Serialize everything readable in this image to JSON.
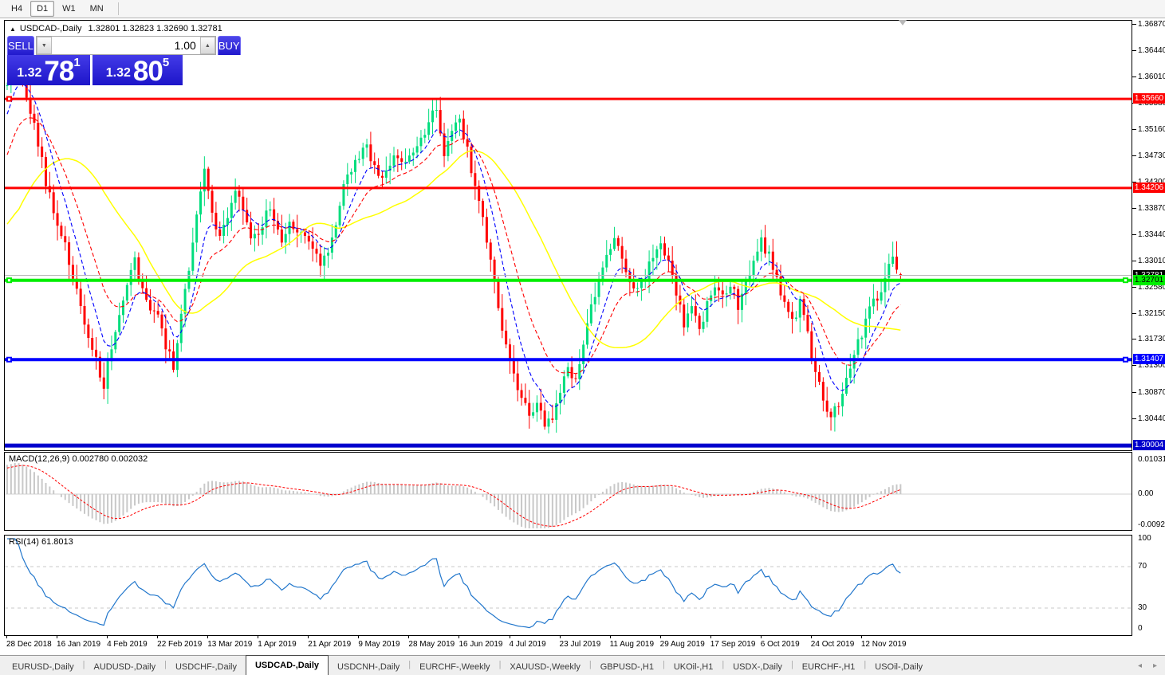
{
  "toolbar": {
    "timeframes": [
      {
        "label": "H4",
        "active": false
      },
      {
        "label": "D1",
        "active": true
      },
      {
        "label": "W1",
        "active": false
      },
      {
        "label": "MN",
        "active": false
      }
    ]
  },
  "chart": {
    "symbol": "USDCAD-,Daily",
    "ohlc_text": "1.32801 1.32823 1.32690 1.32781"
  },
  "trade_panel": {
    "sell_label": "SELL",
    "buy_label": "BUY",
    "volume": "1.00",
    "sell_price_main": "1.32",
    "sell_price_big": "78",
    "sell_price_sup": "1",
    "buy_price_main": "1.32",
    "buy_price_big": "80",
    "buy_price_sup": "5",
    "sell_price_full": "1.32781",
    "buy_price_full": "1.32805"
  },
  "price_axis": {
    "ticks": [
      "1.36870",
      "1.36440",
      "1.36010",
      "1.35580",
      "1.35160",
      "1.34730",
      "1.34300",
      "1.33870",
      "1.33440",
      "1.33010",
      "1.32580",
      "1.32150",
      "1.31730",
      "1.31300",
      "1.30870",
      "1.30440"
    ]
  },
  "hlines": [
    {
      "price": 1.3566,
      "label": "1.35660",
      "color": "#ff0000",
      "width": 3,
      "tag_bg": "#ff0000",
      "tag_fg": "#ffffff",
      "handles": [
        "left"
      ],
      "name": "resistance-line-1.35660"
    },
    {
      "price": 1.34206,
      "label": "1.34206",
      "color": "#ff0000",
      "width": 3,
      "tag_bg": "#ff0000",
      "tag_fg": "#ffffff",
      "handles": [],
      "name": "resistance-line-1.34206"
    },
    {
      "price": 1.32781,
      "label": "1.32781",
      "color": "#b8b8b8",
      "width": 1,
      "tag_bg": "#000000",
      "tag_fg": "#ffffff",
      "handles": [],
      "name": "bid-price-line"
    },
    {
      "price": 1.32701,
      "label": "1.32701",
      "color": "#00ee00",
      "width": 4,
      "tag_bg": "#00ee00",
      "tag_fg": "#000000",
      "handles": [
        "left",
        "right"
      ],
      "name": "support-line-1.32701"
    },
    {
      "price": 1.31407,
      "label": "1.31407",
      "color": "#0000ff",
      "width": 4,
      "tag_bg": "#0000ff",
      "tag_fg": "#ffffff",
      "handles": [
        "left",
        "right"
      ],
      "name": "support-line-1.31407"
    },
    {
      "price": 1.30004,
      "label": "1.30004",
      "color": "#0000cd",
      "width": 5,
      "tag_bg": "#0000cd",
      "tag_fg": "#ffffff",
      "handles": [],
      "name": "support-line-1.30004"
    }
  ],
  "indicators": {
    "macd": {
      "label": "MACD(12,26,9) 0.002780 0.002032",
      "params": [
        12,
        26,
        9
      ],
      "value": 0.00278,
      "signal": 0.002032,
      "axis": [
        {
          "label": "0.010311",
          "value": 0.010311
        },
        {
          "label": "0.00",
          "value": 0
        },
        {
          "label": "-0.009203",
          "value": -0.009203
        }
      ]
    },
    "rsi": {
      "label": "RSI(14) 61.8013",
      "period": 14,
      "value": 61.8013,
      "levels": [
        70,
        30
      ],
      "axis": [
        {
          "label": "100",
          "value": 100
        },
        {
          "label": "70",
          "value": 70
        },
        {
          "label": "30",
          "value": 30
        },
        {
          "label": "0",
          "value": 0
        }
      ]
    }
  },
  "date_axis": [
    "28 Dec 2018",
    "16 Jan 2019",
    "4 Feb 2019",
    "22 Feb 2019",
    "13 Mar 2019",
    "1 Apr 2019",
    "21 Apr 2019",
    "9 May 2019",
    "28 May 2019",
    "16 Jun 2019",
    "4 Jul 2019",
    "23 Jul 2019",
    "11 Aug 2019",
    "29 Aug 2019",
    "17 Sep 2019",
    "6 Oct 2019",
    "24 Oct 2019",
    "12 Nov 2019"
  ],
  "tabs": [
    {
      "label": "EURUSD-,Daily",
      "active": false
    },
    {
      "label": "AUDUSD-,Daily",
      "active": false
    },
    {
      "label": "USDCHF-,Daily",
      "active": false
    },
    {
      "label": "USDCAD-,Daily",
      "active": true
    },
    {
      "label": "USDCNH-,Daily",
      "active": false
    },
    {
      "label": "EURCHF-,Weekly",
      "active": false
    },
    {
      "label": "XAUUSD-,Weekly",
      "active": false
    },
    {
      "label": "GBPUSD-,H1",
      "active": false
    },
    {
      "label": "UKOil-,H1",
      "active": false
    },
    {
      "label": "USDX-,Daily",
      "active": false
    },
    {
      "label": "EURCHF-,H1",
      "active": false
    },
    {
      "label": "USOil-,Daily",
      "active": false
    }
  ],
  "tab_arrows": {
    "left": "◂",
    "right": "▸"
  },
  "colors": {
    "candle_up": "#00dd7d",
    "candle_down": "#ff0000",
    "ma_fast": "#0000ff",
    "ma_mid": "#ff0000",
    "ma_slow": "#ffff00",
    "macd_hist": "#c8c8c8",
    "macd_signal": "#ff0000",
    "rsi_line": "#2277cc",
    "panel_blue": "#2a22d6"
  },
  "chart_data": {
    "type": "candlestick",
    "symbol": "USDCAD-",
    "timeframe": "Daily",
    "candle_count": 232,
    "bars_per_date_label": 13,
    "seed_bars": 30,
    "last_ohlc": {
      "open": 1.32801,
      "high": 1.32823,
      "low": 1.3269,
      "close": 1.32781
    },
    "y_axis_top": 1.3687,
    "y_axis_bottom": 1.3044,
    "sr_levels": [
      1.3566,
      1.34206,
      1.32701,
      1.31407,
      1.30004
    ],
    "price_keypoints": [
      [
        -30,
        1.3165
      ],
      [
        -22,
        1.324
      ],
      [
        -14,
        1.337
      ],
      [
        -7,
        1.349
      ],
      [
        -2,
        1.357
      ],
      [
        0,
        1.359
      ],
      [
        2,
        1.3645
      ],
      [
        4,
        1.36
      ],
      [
        6,
        1.3545
      ],
      [
        8,
        1.3495
      ],
      [
        10,
        1.343
      ],
      [
        12,
        1.338
      ],
      [
        14,
        1.335
      ],
      [
        16,
        1.33
      ],
      [
        18,
        1.3255
      ],
      [
        20,
        1.3205
      ],
      [
        22,
        1.3165
      ],
      [
        24,
        1.311
      ],
      [
        25,
        1.3085
      ],
      [
        26,
        1.313
      ],
      [
        28,
        1.318
      ],
      [
        30,
        1.324
      ],
      [
        32,
        1.329
      ],
      [
        33,
        1.3305
      ],
      [
        35,
        1.3255
      ],
      [
        37,
        1.3225
      ],
      [
        39,
        1.321
      ],
      [
        41,
        1.3165
      ],
      [
        43,
        1.313
      ],
      [
        45,
        1.3215
      ],
      [
        47,
        1.329
      ],
      [
        49,
        1.3385
      ],
      [
        51,
        1.3445
      ],
      [
        53,
        1.3385
      ],
      [
        55,
        1.3335
      ],
      [
        57,
        1.338
      ],
      [
        59,
        1.342
      ],
      [
        61,
        1.3385
      ],
      [
        63,
        1.3335
      ],
      [
        65,
        1.334
      ],
      [
        67,
        1.339
      ],
      [
        69,
        1.3365
      ],
      [
        71,
        1.334
      ],
      [
        73,
        1.336
      ],
      [
        75,
        1.335
      ],
      [
        77,
        1.3345
      ],
      [
        79,
        1.333
      ],
      [
        81,
        1.33
      ],
      [
        83,
        1.332
      ],
      [
        85,
        1.336
      ],
      [
        87,
        1.342
      ],
      [
        89,
        1.345
      ],
      [
        91,
        1.347
      ],
      [
        93,
        1.3485
      ],
      [
        95,
        1.345
      ],
      [
        97,
        1.3445
      ],
      [
        99,
        1.346
      ],
      [
        101,
        1.3475
      ],
      [
        103,
        1.346
      ],
      [
        105,
        1.347
      ],
      [
        107,
        1.3495
      ],
      [
        109,
        1.353
      ],
      [
        111,
        1.355
      ],
      [
        113,
        1.3475
      ],
      [
        115,
        1.351
      ],
      [
        117,
        1.353
      ],
      [
        119,
        1.348
      ],
      [
        121,
        1.342
      ],
      [
        123,
        1.338
      ],
      [
        125,
        1.33
      ],
      [
        127,
        1.323
      ],
      [
        129,
        1.316
      ],
      [
        131,
        1.311
      ],
      [
        133,
        1.308
      ],
      [
        135,
        1.3055
      ],
      [
        137,
        1.3065
      ],
      [
        139,
        1.3035
      ],
      [
        141,
        1.305
      ],
      [
        143,
        1.309
      ],
      [
        145,
        1.313
      ],
      [
        147,
        1.3105
      ],
      [
        149,
        1.316
      ],
      [
        151,
        1.323
      ],
      [
        153,
        1.327
      ],
      [
        155,
        1.331
      ],
      [
        157,
        1.334
      ],
      [
        159,
        1.33
      ],
      [
        161,
        1.327
      ],
      [
        163,
        1.325
      ],
      [
        165,
        1.328
      ],
      [
        167,
        1.3305
      ],
      [
        169,
        1.3335
      ],
      [
        171,
        1.33
      ],
      [
        173,
        1.325
      ],
      [
        175,
        1.32
      ],
      [
        177,
        1.323
      ],
      [
        179,
        1.319
      ],
      [
        181,
        1.323
      ],
      [
        183,
        1.326
      ],
      [
        185,
        1.324
      ],
      [
        187,
        1.3265
      ],
      [
        189,
        1.323
      ],
      [
        191,
        1.3265
      ],
      [
        193,
        1.3295
      ],
      [
        195,
        1.3335
      ],
      [
        197,
        1.331
      ],
      [
        199,
        1.327
      ],
      [
        201,
        1.323
      ],
      [
        203,
        1.32
      ],
      [
        205,
        1.3235
      ],
      [
        207,
        1.318
      ],
      [
        209,
        1.312
      ],
      [
        211,
        1.308
      ],
      [
        213,
        1.3045
      ],
      [
        215,
        1.307
      ],
      [
        217,
        1.311
      ],
      [
        219,
        1.315
      ],
      [
        221,
        1.318
      ],
      [
        223,
        1.322
      ],
      [
        225,
        1.3245
      ],
      [
        227,
        1.327
      ],
      [
        229,
        1.3315
      ],
      [
        230,
        1.3295
      ],
      [
        231,
        1.32781
      ]
    ]
  }
}
